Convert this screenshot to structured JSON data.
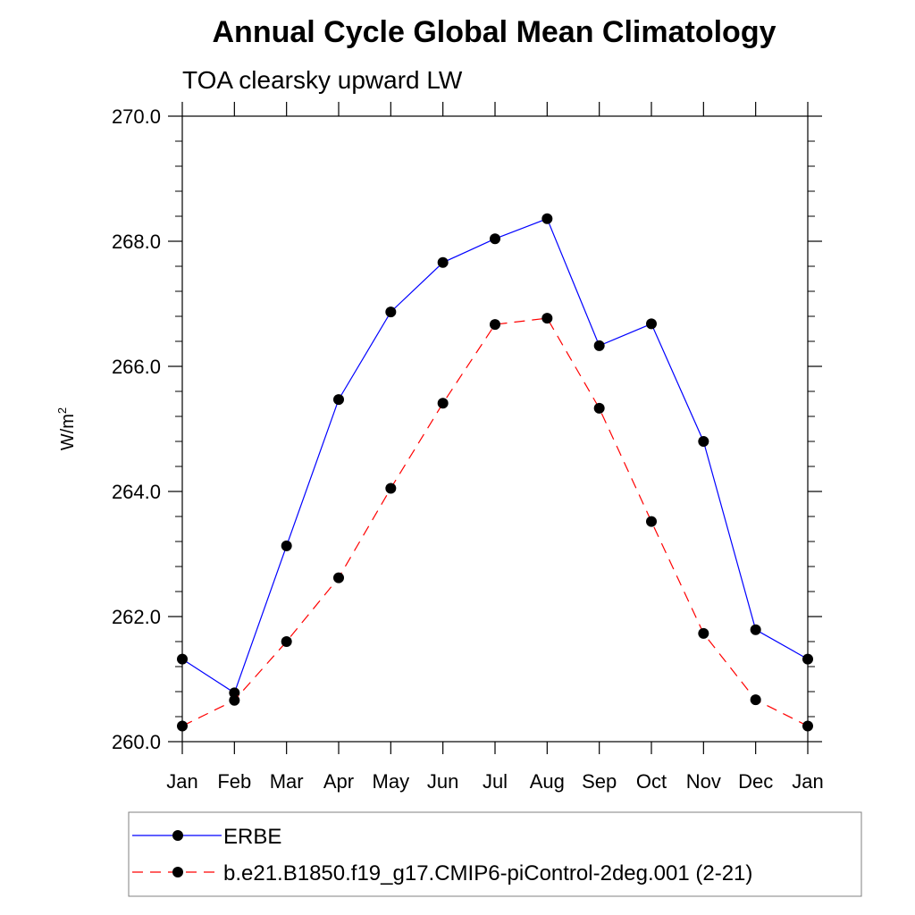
{
  "chart_data": {
    "type": "line",
    "title": "Annual Cycle Global Mean Climatology",
    "subtitle": "TOA clearsky upward LW",
    "ylabel": "W/m",
    "ylabel_sup": "2",
    "categories": [
      "Jan",
      "Feb",
      "Mar",
      "Apr",
      "May",
      "Jun",
      "Jul",
      "Aug",
      "Sep",
      "Oct",
      "Nov",
      "Dec",
      "Jan"
    ],
    "ylim": [
      260.0,
      270.0
    ],
    "yticks": [
      {
        "value": 260.0,
        "label": "260.0"
      },
      {
        "value": 262.0,
        "label": "262.0"
      },
      {
        "value": 264.0,
        "label": "264.0"
      },
      {
        "value": 266.0,
        "label": "266.0"
      },
      {
        "value": 268.0,
        "label": "268.0"
      },
      {
        "value": 270.0,
        "label": "270.0"
      }
    ],
    "series": [
      {
        "name": "ERBE",
        "color": "#0000ff",
        "style": "solid",
        "values": [
          261.32,
          260.78,
          263.13,
          265.47,
          266.87,
          267.66,
          268.04,
          268.36,
          266.33,
          266.68,
          264.8,
          261.79,
          261.32
        ]
      },
      {
        "name": "b.e21.B1850.f19_g17.CMIP6-piControl-2deg.001 (2-21)",
        "color": "#ff0000",
        "style": "dashed",
        "values": [
          260.25,
          260.66,
          261.6,
          262.62,
          264.05,
          265.41,
          266.67,
          266.77,
          265.33,
          263.52,
          261.73,
          260.67,
          260.25
        ]
      }
    ],
    "grid": false,
    "legend_position": "bottom"
  }
}
